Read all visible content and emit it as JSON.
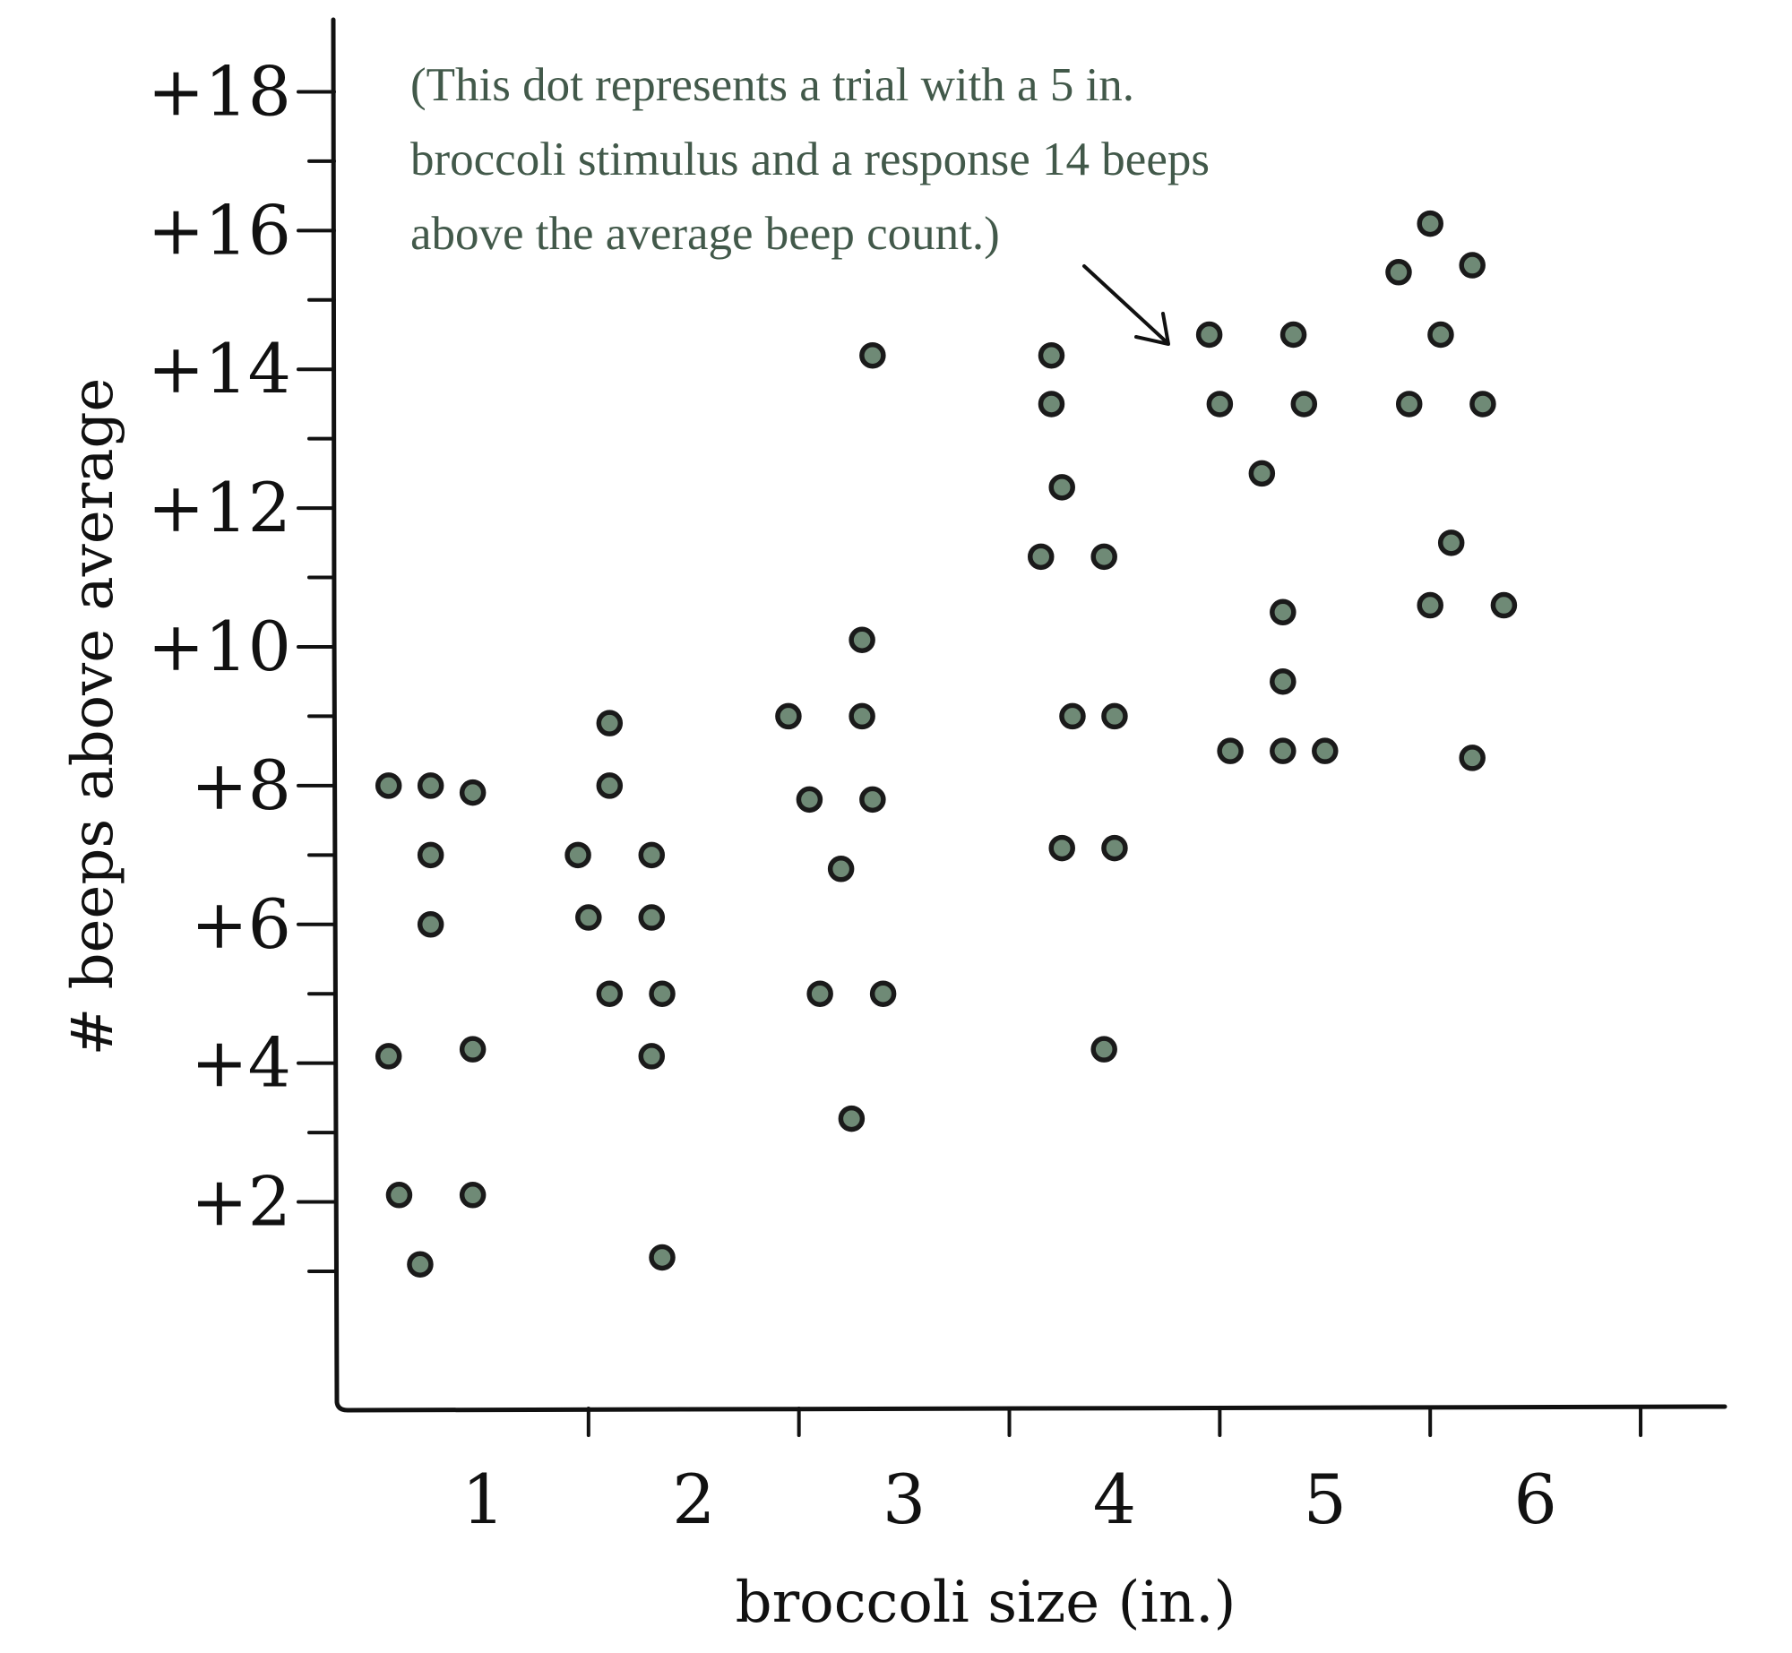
{
  "colors": {
    "ink": "#111111",
    "dot_fill": "#6f8a76",
    "dot_stroke": "#1a1a1a",
    "annotation": "#42594a"
  },
  "chart_data": {
    "type": "scatter",
    "title": "",
    "xlabel": "broccoli size (in.)",
    "ylabel": "# beeps above average",
    "xlim": [
      0.3,
      6.9
    ],
    "ylim": [
      -0.95,
      19
    ],
    "x_ticks": [
      1,
      2,
      3,
      4,
      5,
      6
    ],
    "x_tick_labels": [
      "1",
      "2",
      "3",
      "4",
      "5",
      "6"
    ],
    "y_ticks": [
      2,
      4,
      6,
      8,
      10,
      12,
      14,
      16,
      18
    ],
    "y_tick_labels": [
      "+2",
      "+4",
      "+6",
      "+8",
      "+10",
      "+12",
      "+14",
      "+16",
      "+18"
    ],
    "grid": false,
    "annotation": {
      "lines": [
        "(This dot represents a trial with a 5 in.",
        "broccoli stimulus and a response 14 beeps",
        "above the average beep count.)"
      ],
      "points_to": [
        4.45,
        14.5
      ]
    },
    "series": [
      {
        "points": [
          [
            0.55,
            8.0
          ],
          [
            0.75,
            8.0
          ],
          [
            0.95,
            7.9
          ],
          [
            0.75,
            7.0
          ],
          [
            0.75,
            6.0
          ],
          [
            0.55,
            4.1
          ],
          [
            0.95,
            4.2
          ],
          [
            0.6,
            2.1
          ],
          [
            0.95,
            2.1
          ],
          [
            0.7,
            1.1
          ],
          [
            1.6,
            8.9
          ],
          [
            1.6,
            8.0
          ],
          [
            1.45,
            7.0
          ],
          [
            1.8,
            7.0
          ],
          [
            1.5,
            6.1
          ],
          [
            1.8,
            6.1
          ],
          [
            1.6,
            5.0
          ],
          [
            1.85,
            5.0
          ],
          [
            1.8,
            4.1
          ],
          [
            1.85,
            1.2
          ],
          [
            2.85,
            14.2
          ],
          [
            2.8,
            10.1
          ],
          [
            2.45,
            9.0
          ],
          [
            2.8,
            9.0
          ],
          [
            2.55,
            7.8
          ],
          [
            2.85,
            7.8
          ],
          [
            2.7,
            6.8
          ],
          [
            2.6,
            5.0
          ],
          [
            2.9,
            5.0
          ],
          [
            2.75,
            3.2
          ],
          [
            3.7,
            14.2
          ],
          [
            3.7,
            13.5
          ],
          [
            3.75,
            12.3
          ],
          [
            3.65,
            11.3
          ],
          [
            3.95,
            11.3
          ],
          [
            3.8,
            9.0
          ],
          [
            4.0,
            9.0
          ],
          [
            3.75,
            7.1
          ],
          [
            4.0,
            7.1
          ],
          [
            3.95,
            4.2
          ],
          [
            4.45,
            14.5
          ],
          [
            4.85,
            14.5
          ],
          [
            4.5,
            13.5
          ],
          [
            4.9,
            13.5
          ],
          [
            4.7,
            12.5
          ],
          [
            4.8,
            10.5
          ],
          [
            4.8,
            9.5
          ],
          [
            4.55,
            8.5
          ],
          [
            4.8,
            8.5
          ],
          [
            5.0,
            8.5
          ],
          [
            5.5,
            16.1
          ],
          [
            5.35,
            15.4
          ],
          [
            5.7,
            15.5
          ],
          [
            5.55,
            14.5
          ],
          [
            5.4,
            13.5
          ],
          [
            5.75,
            13.5
          ],
          [
            5.6,
            11.5
          ],
          [
            5.5,
            10.6
          ],
          [
            5.85,
            10.6
          ],
          [
            5.7,
            8.4
          ]
        ]
      }
    ]
  }
}
